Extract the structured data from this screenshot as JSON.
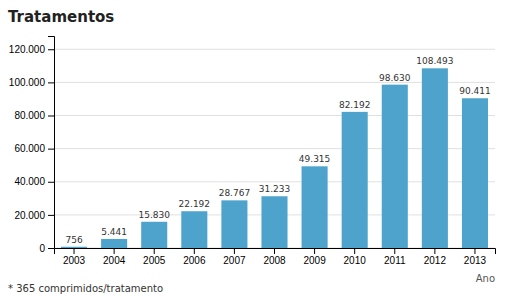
{
  "chart_data": {
    "type": "bar",
    "ylabel": "Tratamentos",
    "xlabel": "Ano",
    "footnote": "* 365 comprimidos/tratamento",
    "categories": [
      "2003",
      "2004",
      "2005",
      "2006",
      "2007",
      "2008",
      "2009",
      "2010",
      "2011",
      "2012",
      "2013"
    ],
    "values": [
      756,
      5441,
      15830,
      22192,
      28767,
      31233,
      49315,
      82192,
      98630,
      108493,
      90411
    ],
    "value_labels": [
      "756",
      "5.441",
      "15.830",
      "22.192",
      "28.767",
      "31.233",
      "49.315",
      "82.192",
      "98.630",
      "108.493",
      "90.411"
    ],
    "data_labels": true,
    "color": "#4da3cc",
    "ylim": [
      0,
      128000
    ],
    "yticks": [
      0,
      {
        "value": 20000,
        "label": "20.000"
      },
      {
        "value": 40000,
        "label": "40.000"
      },
      {
        "value": 60000,
        "label": "60.000"
      },
      {
        "value": 80000,
        "label": "80.000"
      },
      {
        "value": 100000,
        "label": "100.000"
      },
      {
        "value": 120000,
        "label": "120.000"
      }
    ],
    "grid": true
  }
}
